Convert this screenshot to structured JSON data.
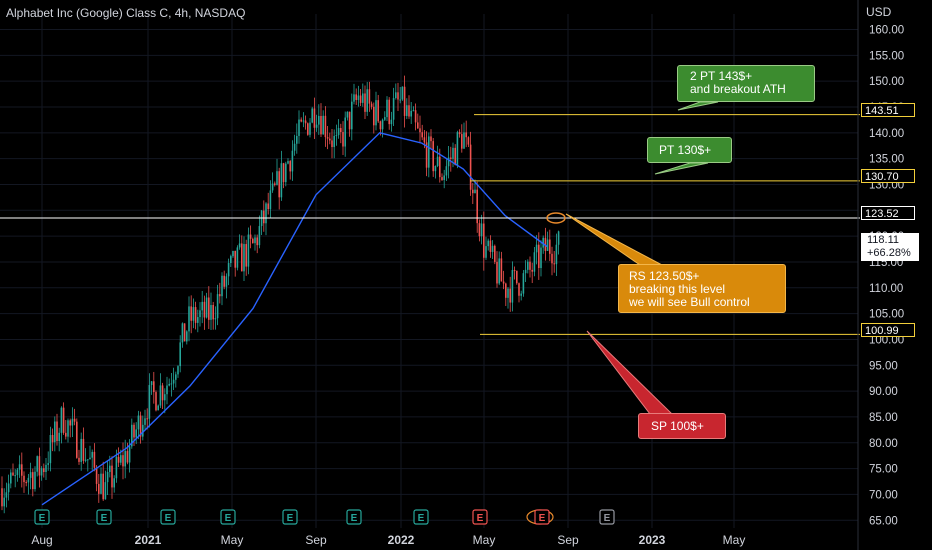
{
  "header": {
    "title": "Alphabet Inc (Google) Class C, 4h, NASDAQ",
    "currency": "USD"
  },
  "colors": {
    "background": "#000000",
    "up_candle": "#26a69a",
    "down_candle": "#ef5350",
    "moving_average": "#2962ff",
    "level_line": "#f2cf3a",
    "callout_green": "#3c8c2f",
    "callout_orange": "#d98a0b",
    "callout_red": "#c8262f"
  },
  "price_tags": {
    "pt2": "143.51",
    "pt1": "130.70",
    "rs": "123.52",
    "sp": "100.99",
    "last_price": "118.11",
    "last_change": "+66.28%"
  },
  "annotations": {
    "pt2_line1": "2 PT 143$+",
    "pt2_line2": "and breakout ATH",
    "pt1": "PT 130$+",
    "rs_line1": "RS 123.50$+",
    "rs_line2": "breaking this level",
    "rs_line3": "we will see Bull control",
    "sp": "SP 100$+"
  },
  "event_markers": [
    "E",
    "E",
    "E",
    "E",
    "E",
    "E",
    "E",
    "E",
    "E",
    "E"
  ],
  "chart_data": {
    "type": "candlestick",
    "title": "Alphabet Inc (Google) Class C, 4h, NASDAQ",
    "y_axis_label": "USD",
    "ylim": [
      63.5,
      163
    ],
    "y_ticks": [
      65,
      70,
      75,
      80,
      85,
      90,
      95,
      100,
      105,
      110,
      115,
      120,
      125,
      130,
      135,
      140,
      145,
      150,
      155,
      160
    ],
    "x_ticks": [
      "Aug",
      "2021",
      "May",
      "Sep",
      "2022",
      "May",
      "Sep",
      "2023",
      "May"
    ],
    "horizontal_levels": [
      {
        "label": "143.51",
        "value": 143.51
      },
      {
        "label": "130.70",
        "value": 130.7
      },
      {
        "label": "123.52",
        "value": 123.52
      },
      {
        "label": "100.99",
        "value": 100.99
      }
    ],
    "last_price": 118.11,
    "change_percent": "+66.28%",
    "price_path": [
      [
        "2020-07",
        71
      ],
      [
        "2020-08",
        75
      ],
      [
        "2020-09",
        85
      ],
      [
        "2020-10",
        78
      ],
      [
        "2020-11",
        71
      ],
      [
        "2020-12",
        78
      ],
      [
        "2021-01",
        88
      ],
      [
        "2021-02",
        92
      ],
      [
        "2021-03",
        104
      ],
      [
        "2021-04",
        105
      ],
      [
        "2021-05",
        114
      ],
      [
        "2021-06",
        118
      ],
      [
        "2021-07",
        128
      ],
      [
        "2021-08",
        138
      ],
      [
        "2021-09",
        145
      ],
      [
        "2021-10",
        137
      ],
      [
        "2021-11",
        147
      ],
      [
        "2021-12",
        143
      ],
      [
        "2022-01",
        146
      ],
      [
        "2022-02",
        138
      ],
      [
        "2022-03",
        132
      ],
      [
        "2022-04",
        140
      ],
      [
        "2022-05",
        118
      ],
      [
        "2022-06",
        110
      ],
      [
        "2022-07",
        112
      ],
      [
        "2022-08",
        118
      ]
    ],
    "moving_average_path": [
      [
        "2020-08",
        68
      ],
      [
        "2020-12",
        79
      ],
      [
        "2021-03",
        91
      ],
      [
        "2021-06",
        106
      ],
      [
        "2021-09",
        128
      ],
      [
        "2021-12",
        140
      ],
      [
        "2022-02",
        138
      ],
      [
        "2022-04",
        133
      ],
      [
        "2022-06",
        124
      ],
      [
        "2022-08",
        118
      ]
    ]
  }
}
